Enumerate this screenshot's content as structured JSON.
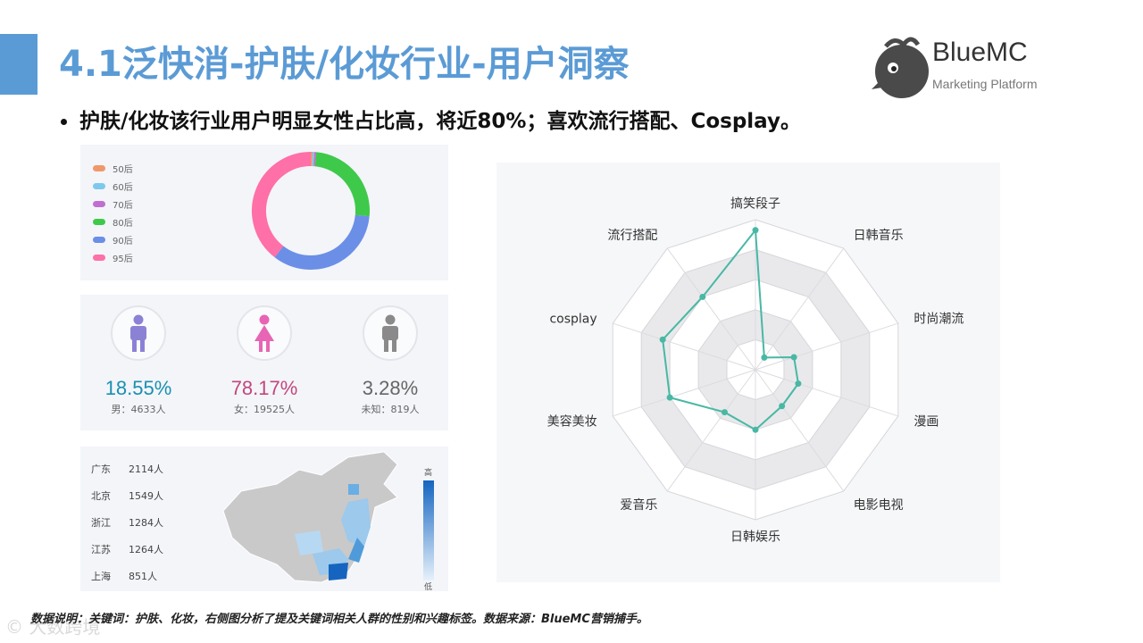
{
  "slide": {
    "title": "4.1泛快消-护肤/化妆行业-用户洞察",
    "bullet": "护肤/化妆该行业用户明显女性占比高，将近80%；喜欢流行搭配、Cosplay。",
    "footer": "数据说明：关键词：护肤、化妆，右侧图分析了提及关键词相关人群的性别和兴趣标签。数据来源：BlueMC营销捕手。",
    "watermark": "© 大数跨境"
  },
  "logo": {
    "name": "BlueMC",
    "tagline": "Marketing Platform"
  },
  "colors": {
    "accent": "#5b9bd5",
    "male": "#1a8fb0",
    "female": "#c2467e",
    "unknown": "#666666",
    "radar_line": "#48b8a4"
  },
  "age_legend": [
    {
      "label": "50后",
      "color": "#f0976b"
    },
    {
      "label": "60后",
      "color": "#7ec8ef"
    },
    {
      "label": "70后",
      "color": "#c06fd0"
    },
    {
      "label": "80后",
      "color": "#3fc94a"
    },
    {
      "label": "90后",
      "color": "#6b8fe6"
    },
    {
      "label": "95后",
      "color": "#ff6fa8"
    }
  ],
  "gender": {
    "male": {
      "pct": "18.55%",
      "sub": "男：4633人"
    },
    "female": {
      "pct": "78.17%",
      "sub": "女：19525人"
    },
    "unknown": {
      "pct": "3.28%",
      "sub": "未知：819人"
    }
  },
  "regions": [
    {
      "name": "广东",
      "count": "2114人"
    },
    {
      "name": "北京",
      "count": "1549人"
    },
    {
      "name": "浙江",
      "count": "1284人"
    },
    {
      "name": "江苏",
      "count": "1264人"
    },
    {
      "name": "上海",
      "count": "851人"
    }
  ],
  "map_scale": {
    "high": "高",
    "low": "低"
  },
  "chart_data": [
    {
      "type": "pie",
      "categories": [
        "50后",
        "60后",
        "70后",
        "80后",
        "90后",
        "95后"
      ],
      "values": [
        0.5,
        0.5,
        0.5,
        25,
        34,
        39.5
      ]
    },
    {
      "type": "radar",
      "categories": [
        "搞笑段子",
        "日韩音乐",
        "时尚潮流",
        "漫画",
        "电影电视",
        "日韩娱乐",
        "爱音乐",
        "美容美妆",
        "cosplay",
        "流行搭配"
      ],
      "values": [
        0.93,
        0.1,
        0.27,
        0.3,
        0.3,
        0.4,
        0.35,
        0.6,
        0.65,
        0.6
      ],
      "rmax": 1
    }
  ]
}
